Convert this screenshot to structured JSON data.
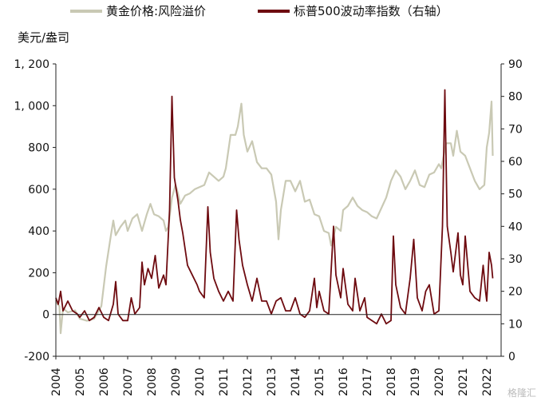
{
  "chart_data": {
    "type": "line",
    "y_unit_label": "美元/盎司",
    "legend": {
      "placement": "top",
      "entries": [
        "黄金价格:风险溢价",
        "标普500波动率指数（右轴）"
      ]
    },
    "grid": false,
    "x": {
      "categories": [
        "2004",
        "2005",
        "2006",
        "2007",
        "2008",
        "2009",
        "2010",
        "2011",
        "2012",
        "2013",
        "2014",
        "2015",
        "2016",
        "2017",
        "2018",
        "2019",
        "2020",
        "2021",
        "2022"
      ],
      "range": [
        2004,
        2022.6
      ]
    },
    "y_left": {
      "ticks": [
        "-200",
        "0",
        "200",
        "400",
        "600",
        "800",
        "1, 000",
        "1, 200"
      ],
      "range": [
        -200,
        1200
      ]
    },
    "y_right": {
      "ticks": [
        "0",
        "10",
        "20",
        "30",
        "40",
        "50",
        "60",
        "70",
        "80",
        "90"
      ],
      "range": [
        0,
        90
      ]
    },
    "series": [
      {
        "name": "黄金价格:风险溢价",
        "axis": "left",
        "color": "#c9c9b4",
        "points": [
          [
            2004.0,
            60
          ],
          [
            2004.15,
            40
          ],
          [
            2004.2,
            -90
          ],
          [
            2004.3,
            30
          ],
          [
            2004.5,
            10
          ],
          [
            2004.8,
            20
          ],
          [
            2005.0,
            -20
          ],
          [
            2005.3,
            -30
          ],
          [
            2005.6,
            -20
          ],
          [
            2005.9,
            40
          ],
          [
            2006.1,
            230
          ],
          [
            2006.3,
            380
          ],
          [
            2006.4,
            450
          ],
          [
            2006.5,
            380
          ],
          [
            2006.7,
            420
          ],
          [
            2006.9,
            450
          ],
          [
            2007.0,
            400
          ],
          [
            2007.2,
            460
          ],
          [
            2007.4,
            480
          ],
          [
            2007.6,
            400
          ],
          [
            2007.8,
            480
          ],
          [
            2007.95,
            530
          ],
          [
            2008.1,
            480
          ],
          [
            2008.3,
            470
          ],
          [
            2008.5,
            450
          ],
          [
            2008.6,
            400
          ],
          [
            2008.7,
            420
          ],
          [
            2008.85,
            560
          ],
          [
            2009.0,
            620
          ],
          [
            2009.1,
            580
          ],
          [
            2009.2,
            530
          ],
          [
            2009.4,
            570
          ],
          [
            2009.6,
            580
          ],
          [
            2009.8,
            600
          ],
          [
            2010.0,
            610
          ],
          [
            2010.2,
            620
          ],
          [
            2010.4,
            680
          ],
          [
            2010.6,
            660
          ],
          [
            2010.8,
            640
          ],
          [
            2011.0,
            660
          ],
          [
            2011.1,
            700
          ],
          [
            2011.3,
            860
          ],
          [
            2011.5,
            860
          ],
          [
            2011.6,
            900
          ],
          [
            2011.75,
            1010
          ],
          [
            2011.85,
            860
          ],
          [
            2012.0,
            780
          ],
          [
            2012.2,
            830
          ],
          [
            2012.4,
            730
          ],
          [
            2012.6,
            700
          ],
          [
            2012.8,
            700
          ],
          [
            2013.0,
            670
          ],
          [
            2013.2,
            540
          ],
          [
            2013.3,
            360
          ],
          [
            2013.4,
            500
          ],
          [
            2013.6,
            640
          ],
          [
            2013.8,
            640
          ],
          [
            2014.0,
            590
          ],
          [
            2014.2,
            640
          ],
          [
            2014.4,
            540
          ],
          [
            2014.6,
            550
          ],
          [
            2014.8,
            480
          ],
          [
            2015.0,
            470
          ],
          [
            2015.2,
            400
          ],
          [
            2015.4,
            390
          ],
          [
            2015.5,
            330
          ],
          [
            2015.7,
            420
          ],
          [
            2015.9,
            400
          ],
          [
            2016.0,
            500
          ],
          [
            2016.2,
            520
          ],
          [
            2016.4,
            560
          ],
          [
            2016.6,
            520
          ],
          [
            2016.8,
            500
          ],
          [
            2017.0,
            490
          ],
          [
            2017.2,
            470
          ],
          [
            2017.4,
            460
          ],
          [
            2017.6,
            510
          ],
          [
            2017.8,
            560
          ],
          [
            2018.0,
            640
          ],
          [
            2018.2,
            690
          ],
          [
            2018.4,
            660
          ],
          [
            2018.6,
            600
          ],
          [
            2018.8,
            640
          ],
          [
            2019.0,
            690
          ],
          [
            2019.2,
            620
          ],
          [
            2019.4,
            610
          ],
          [
            2019.6,
            670
          ],
          [
            2019.8,
            680
          ],
          [
            2020.0,
            720
          ],
          [
            2020.1,
            700
          ],
          [
            2020.3,
            820
          ],
          [
            2020.5,
            820
          ],
          [
            2020.6,
            760
          ],
          [
            2020.75,
            880
          ],
          [
            2020.9,
            780
          ],
          [
            2021.1,
            760
          ],
          [
            2021.3,
            700
          ],
          [
            2021.5,
            640
          ],
          [
            2021.7,
            600
          ],
          [
            2021.9,
            620
          ],
          [
            2022.0,
            800
          ],
          [
            2022.1,
            870
          ],
          [
            2022.2,
            1020
          ],
          [
            2022.25,
            760
          ]
        ]
      },
      {
        "name": "标普500波动率指数（右轴）",
        "axis": "right",
        "color": "#6e0b10",
        "points": [
          [
            2004.0,
            18
          ],
          [
            2004.1,
            16
          ],
          [
            2004.2,
            20
          ],
          [
            2004.3,
            14
          ],
          [
            2004.5,
            17
          ],
          [
            2004.7,
            14
          ],
          [
            2004.9,
            13
          ],
          [
            2005.0,
            12
          ],
          [
            2005.2,
            14
          ],
          [
            2005.4,
            11
          ],
          [
            2005.6,
            12
          ],
          [
            2005.8,
            15
          ],
          [
            2006.0,
            12
          ],
          [
            2006.2,
            11
          ],
          [
            2006.4,
            16
          ],
          [
            2006.5,
            23
          ],
          [
            2006.6,
            13
          ],
          [
            2006.8,
            11
          ],
          [
            2007.0,
            11
          ],
          [
            2007.15,
            18
          ],
          [
            2007.3,
            13
          ],
          [
            2007.5,
            15
          ],
          [
            2007.6,
            29
          ],
          [
            2007.7,
            22
          ],
          [
            2007.85,
            27
          ],
          [
            2008.0,
            24
          ],
          [
            2008.15,
            31
          ],
          [
            2008.3,
            21
          ],
          [
            2008.5,
            25
          ],
          [
            2008.6,
            22
          ],
          [
            2008.75,
            45
          ],
          [
            2008.85,
            80
          ],
          [
            2008.95,
            55
          ],
          [
            2009.1,
            48
          ],
          [
            2009.2,
            42
          ],
          [
            2009.3,
            38
          ],
          [
            2009.5,
            28
          ],
          [
            2009.7,
            25
          ],
          [
            2009.9,
            22
          ],
          [
            2010.0,
            20
          ],
          [
            2010.2,
            18
          ],
          [
            2010.35,
            46
          ],
          [
            2010.45,
            32
          ],
          [
            2010.6,
            24
          ],
          [
            2010.8,
            20
          ],
          [
            2011.0,
            17
          ],
          [
            2011.2,
            20
          ],
          [
            2011.4,
            17
          ],
          [
            2011.55,
            45
          ],
          [
            2011.65,
            36
          ],
          [
            2011.8,
            28
          ],
          [
            2012.0,
            22
          ],
          [
            2012.2,
            17
          ],
          [
            2012.4,
            24
          ],
          [
            2012.6,
            17
          ],
          [
            2012.8,
            17
          ],
          [
            2013.0,
            13
          ],
          [
            2013.2,
            17
          ],
          [
            2013.4,
            18
          ],
          [
            2013.6,
            14
          ],
          [
            2013.8,
            14
          ],
          [
            2014.0,
            18
          ],
          [
            2014.2,
            13
          ],
          [
            2014.4,
            12
          ],
          [
            2014.6,
            14
          ],
          [
            2014.8,
            24
          ],
          [
            2014.9,
            15
          ],
          [
            2015.0,
            20
          ],
          [
            2015.2,
            14
          ],
          [
            2015.4,
            13
          ],
          [
            2015.6,
            40
          ],
          [
            2015.7,
            25
          ],
          [
            2015.9,
            18
          ],
          [
            2016.0,
            27
          ],
          [
            2016.2,
            16
          ],
          [
            2016.4,
            14
          ],
          [
            2016.5,
            24
          ],
          [
            2016.7,
            14
          ],
          [
            2016.9,
            18
          ],
          [
            2017.0,
            12
          ],
          [
            2017.2,
            11
          ],
          [
            2017.4,
            10
          ],
          [
            2017.6,
            13
          ],
          [
            2017.8,
            10
          ],
          [
            2018.0,
            11
          ],
          [
            2018.1,
            37
          ],
          [
            2018.2,
            22
          ],
          [
            2018.4,
            15
          ],
          [
            2018.6,
            13
          ],
          [
            2018.8,
            24
          ],
          [
            2018.95,
            36
          ],
          [
            2019.1,
            18
          ],
          [
            2019.3,
            14
          ],
          [
            2019.45,
            20
          ],
          [
            2019.6,
            22
          ],
          [
            2019.8,
            13
          ],
          [
            2020.0,
            14
          ],
          [
            2020.15,
            40
          ],
          [
            2020.25,
            82
          ],
          [
            2020.35,
            40
          ],
          [
            2020.5,
            32
          ],
          [
            2020.6,
            26
          ],
          [
            2020.8,
            38
          ],
          [
            2020.9,
            25
          ],
          [
            2021.0,
            22
          ],
          [
            2021.1,
            37
          ],
          [
            2021.3,
            20
          ],
          [
            2021.5,
            18
          ],
          [
            2021.7,
            17
          ],
          [
            2021.85,
            28
          ],
          [
            2021.95,
            20
          ],
          [
            2022.0,
            17
          ],
          [
            2022.1,
            32
          ],
          [
            2022.2,
            28
          ],
          [
            2022.25,
            24
          ]
        ]
      }
    ]
  },
  "watermark": "格隆汇"
}
